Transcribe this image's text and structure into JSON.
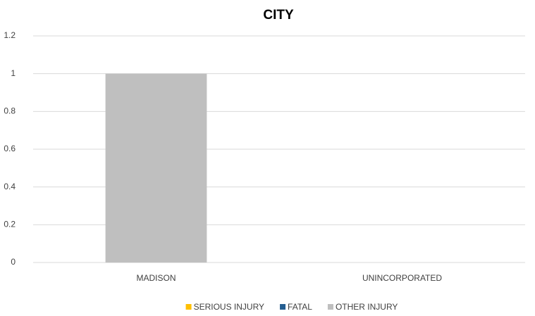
{
  "chart_data": {
    "type": "stacked_bar",
    "title": "CITY",
    "categories": [
      "MADISON",
      "UNINCORPORATED"
    ],
    "series": [
      {
        "name": "SERIOUS INJURY",
        "color": "#ffc000",
        "values": [
          0,
          0
        ]
      },
      {
        "name": "FATAL",
        "color": "#255e91",
        "values": [
          0,
          0
        ]
      },
      {
        "name": "OTHER INJURY",
        "color": "#bfbfbf",
        "values": [
          1,
          0
        ]
      }
    ],
    "ylim": [
      0,
      1.2
    ],
    "yticks": [
      0,
      0.2,
      0.4,
      0.6,
      0.8,
      1,
      1.2
    ],
    "grid": true,
    "legend": "bottom"
  }
}
